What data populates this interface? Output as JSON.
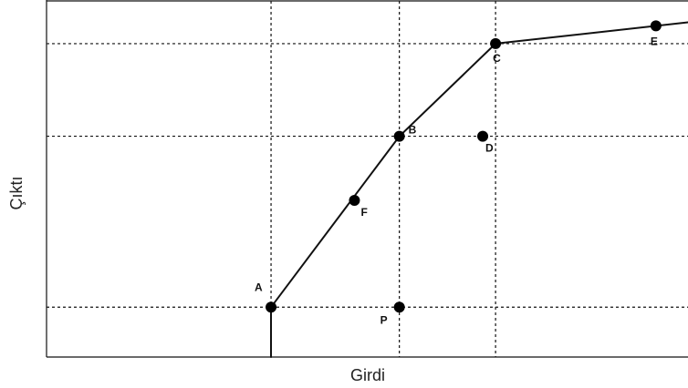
{
  "diagram": {
    "xlabel": "Girdi",
    "ylabel": "Çıktı",
    "xlim": [
      0,
      10
    ],
    "ylim": [
      0,
      10
    ],
    "gridlines_x": [
      3.5,
      5.5,
      7.0
    ],
    "gridlines_y": [
      1.4,
      6.2,
      8.8
    ],
    "frontier": [
      {
        "x": 3.5,
        "y": 0.0
      },
      {
        "x": 3.5,
        "y": 1.4
      },
      {
        "x": 5.5,
        "y": 6.2
      },
      {
        "x": 7.0,
        "y": 8.8
      },
      {
        "x": 10.0,
        "y": 9.4
      }
    ],
    "points": [
      {
        "id": "A",
        "label": "A",
        "x": 3.5,
        "y": 1.4
      },
      {
        "id": "B",
        "label": "B",
        "x": 5.5,
        "y": 6.2
      },
      {
        "id": "C",
        "label": "C",
        "x": 7.0,
        "y": 8.8
      },
      {
        "id": "D",
        "label": "D",
        "x": 6.8,
        "y": 6.2
      },
      {
        "id": "E",
        "label": "E",
        "x": 9.5,
        "y": 9.3
      },
      {
        "id": "F",
        "label": "F",
        "x": 4.8,
        "y": 4.4
      },
      {
        "id": "P",
        "label": "P",
        "x": 5.5,
        "y": 1.4
      }
    ]
  }
}
